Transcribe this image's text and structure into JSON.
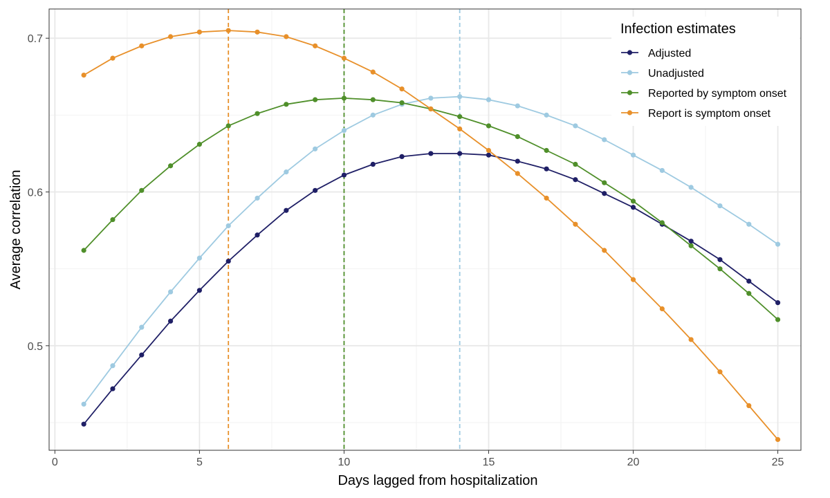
{
  "chart_data": {
    "type": "line",
    "xlabel": "Days lagged from hospitalization",
    "ylabel": "Average correlation",
    "xlim": [
      -0.2,
      25.8
    ],
    "ylim": [
      0.432,
      0.719
    ],
    "x_ticks": [
      0,
      5,
      10,
      15,
      20,
      25
    ],
    "y_ticks": [
      0.5,
      0.6,
      0.7
    ],
    "x_tick_labels": [
      "0",
      "5",
      "10",
      "15",
      "20",
      "25"
    ],
    "y_tick_labels": [
      "0.5",
      "0.6",
      "0.7"
    ],
    "grid": true,
    "legend": {
      "title": "Infection estimates",
      "position": "top-right"
    },
    "x": [
      1,
      2,
      3,
      4,
      5,
      6,
      7,
      8,
      9,
      10,
      11,
      12,
      13,
      14,
      15,
      16,
      17,
      18,
      19,
      20,
      21,
      22,
      23,
      24,
      25
    ],
    "series": [
      {
        "name": "Adjusted",
        "color": "#1f1f66",
        "values": [
          0.449,
          0.472,
          0.494,
          0.516,
          0.536,
          0.555,
          0.572,
          0.588,
          0.601,
          0.611,
          0.618,
          0.623,
          0.625,
          0.625,
          0.624,
          0.62,
          0.615,
          0.608,
          0.599,
          0.59,
          0.579,
          0.568,
          0.556,
          0.542,
          0.528
        ]
      },
      {
        "name": "Unadjusted",
        "color": "#9ecae1",
        "values": [
          0.462,
          0.487,
          0.512,
          0.535,
          0.557,
          0.578,
          0.596,
          0.613,
          0.628,
          0.64,
          0.65,
          0.657,
          0.661,
          0.662,
          0.66,
          0.656,
          0.65,
          0.643,
          0.634,
          0.624,
          0.614,
          0.603,
          0.591,
          0.579,
          0.566
        ]
      },
      {
        "name": "Reported by symptom onset",
        "color": "#4f8f2a",
        "values": [
          0.562,
          0.582,
          0.601,
          0.617,
          0.631,
          0.643,
          0.651,
          0.657,
          0.66,
          0.661,
          0.66,
          0.658,
          0.654,
          0.649,
          0.643,
          0.636,
          0.627,
          0.618,
          0.606,
          0.594,
          0.58,
          0.565,
          0.55,
          0.534,
          0.517
        ]
      },
      {
        "name": "Report is symptom onset",
        "color": "#e8902a",
        "values": [
          0.676,
          0.687,
          0.695,
          0.701,
          0.704,
          0.705,
          0.704,
          0.701,
          0.695,
          0.687,
          0.678,
          0.667,
          0.654,
          0.641,
          0.627,
          0.612,
          0.596,
          0.579,
          0.562,
          0.543,
          0.524,
          0.504,
          0.483,
          0.461,
          0.439
        ]
      }
    ],
    "vlines": [
      {
        "x": 6,
        "color": "#e8902a"
      },
      {
        "x": 10,
        "color": "#4f8f2a"
      },
      {
        "x": 14,
        "color": "#9ecae1"
      }
    ]
  }
}
